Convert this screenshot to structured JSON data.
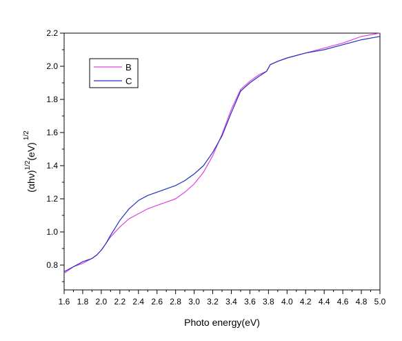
{
  "chart_data": {
    "type": "line",
    "title": "",
    "xlabel": "Photo energy(eV)",
    "ylabel": {
      "open": "(",
      "symbol": "αhν)",
      "exp1": "1/2",
      "unit": "(eV)",
      "exp2": "1/2"
    },
    "xlim": [
      1.6,
      5.0
    ],
    "ylim": [
      0.65,
      2.2
    ],
    "xticks": [
      "1.6",
      "1.8",
      "2.0",
      "2.2",
      "2.4",
      "2.6",
      "2.8",
      "3.0",
      "3.2",
      "3.4",
      "3.6",
      "3.8",
      "4.0",
      "4.2",
      "4.4",
      "4.6",
      "4.8",
      "5.0"
    ],
    "yticks": [
      "0.8",
      "1.0",
      "1.2",
      "1.4",
      "1.6",
      "1.8",
      "2.0",
      "2.2"
    ],
    "grid": false,
    "legend_position": "top-left",
    "series": [
      {
        "name": "B",
        "color": "#e040e0",
        "x": [
          1.6,
          1.7,
          1.8,
          1.9,
          1.95,
          2.0,
          2.05,
          2.1,
          2.2,
          2.3,
          2.4,
          2.5,
          2.6,
          2.7,
          2.8,
          2.9,
          3.0,
          3.1,
          3.2,
          3.3,
          3.4,
          3.5,
          3.6,
          3.7,
          3.78,
          3.82,
          3.9,
          4.0,
          4.2,
          4.4,
          4.6,
          4.8,
          5.0
        ],
        "y": [
          0.75,
          0.79,
          0.81,
          0.84,
          0.86,
          0.89,
          0.93,
          0.97,
          1.03,
          1.08,
          1.11,
          1.14,
          1.16,
          1.18,
          1.2,
          1.24,
          1.29,
          1.36,
          1.46,
          1.59,
          1.74,
          1.86,
          1.91,
          1.95,
          1.97,
          2.01,
          2.03,
          2.05,
          2.08,
          2.11,
          2.14,
          2.18,
          2.2
        ]
      },
      {
        "name": "C",
        "color": "#2030c0",
        "x": [
          1.6,
          1.7,
          1.8,
          1.9,
          1.95,
          2.0,
          2.05,
          2.1,
          2.2,
          2.3,
          2.4,
          2.5,
          2.6,
          2.7,
          2.8,
          2.9,
          3.0,
          3.1,
          3.2,
          3.3,
          3.4,
          3.5,
          3.6,
          3.7,
          3.78,
          3.82,
          3.9,
          4.0,
          4.2,
          4.4,
          4.6,
          4.8,
          5.0
        ],
        "y": [
          0.76,
          0.79,
          0.82,
          0.84,
          0.86,
          0.89,
          0.93,
          0.98,
          1.07,
          1.14,
          1.19,
          1.22,
          1.24,
          1.26,
          1.28,
          1.31,
          1.35,
          1.4,
          1.48,
          1.58,
          1.72,
          1.85,
          1.9,
          1.94,
          1.97,
          2.01,
          2.03,
          2.05,
          2.08,
          2.1,
          2.13,
          2.16,
          2.18
        ]
      }
    ]
  }
}
